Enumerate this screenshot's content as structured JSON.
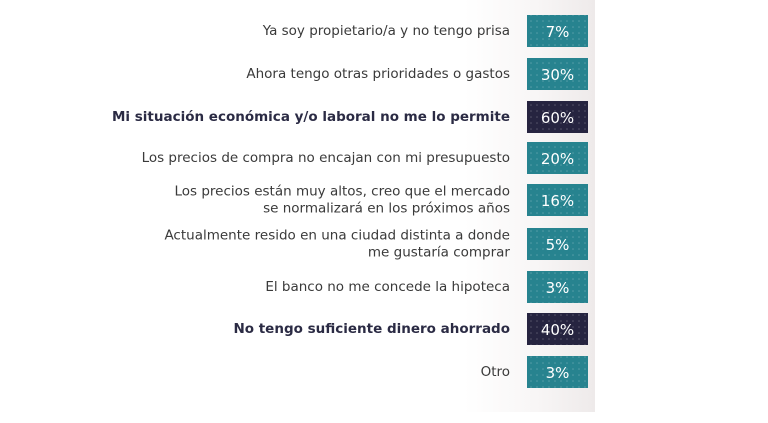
{
  "chart_data": {
    "type": "table",
    "rows": [
      {
        "label": [
          "Ya soy propietario/a y no tengo prisa"
        ],
        "value": "7%",
        "highlight": false
      },
      {
        "label": [
          "Ahora tengo otras prioridades o gastos"
        ],
        "value": "30%",
        "highlight": false
      },
      {
        "label": [
          "Mi situación económica y/o laboral no me lo permite"
        ],
        "value": "60%",
        "highlight": true
      },
      {
        "label": [
          "Los precios de compra no encajan con mi presupuesto"
        ],
        "value": "20%",
        "highlight": false
      },
      {
        "label": [
          "Los precios están muy altos, creo que el mercado",
          "se normalizará en los próximos años"
        ],
        "value": "16%",
        "highlight": false
      },
      {
        "label": [
          "Actualmente resido en una ciudad distinta a donde",
          "me gustaría comprar"
        ],
        "value": "5%",
        "highlight": false
      },
      {
        "label": [
          "El banco no me concede la hipoteca"
        ],
        "value": "3%",
        "highlight": false
      },
      {
        "label": [
          "No tengo suficiente dinero ahorrado"
        ],
        "value": "40%",
        "highlight": true
      },
      {
        "label": [
          "Otro"
        ],
        "value": "3%",
        "highlight": false
      }
    ],
    "colors": {
      "normal_box": "#27838f",
      "highlight_box": "#262440",
      "text": "#3a3a3a",
      "highlight_text": "#2b2b44",
      "value_text": "#ffffff"
    }
  }
}
